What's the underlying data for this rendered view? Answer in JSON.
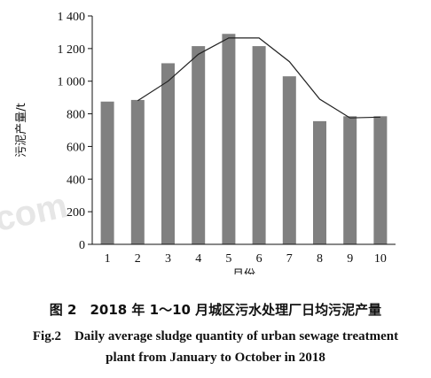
{
  "chart_data": {
    "type": "bar",
    "categories": [
      "1",
      "2",
      "3",
      "4",
      "5",
      "6",
      "7",
      "8",
      "9",
      "10"
    ],
    "series": [
      {
        "type": "bar",
        "values": [
          875,
          885,
          1110,
          1215,
          1290,
          1215,
          1030,
          755,
          785,
          785
        ],
        "color": "#808080"
      },
      {
        "type": "line",
        "values": [
          null,
          880,
          1000,
          1165,
          1265,
          1265,
          1120,
          890,
          775,
          780
        ],
        "color": "#222222"
      }
    ],
    "yticks": [
      0,
      200,
      400,
      600,
      800,
      1000,
      1200,
      1400
    ],
    "ytick_labels": [
      "0",
      "200",
      "400",
      "600",
      "800",
      "1 000",
      "1 200",
      "1 400"
    ],
    "ylim": [
      0,
      1400
    ],
    "xlabel": "月份",
    "ylabel": "污泥产量/t",
    "grid": false,
    "watermark": "com"
  },
  "caption": {
    "cn": "图 2　2018 年 1～10 月城区污水处理厂日均污泥产量",
    "en_line1": "Fig.2　Daily average sludge quantity of urban sewage treatment",
    "en_line2": "plant from January to October in 2018"
  }
}
